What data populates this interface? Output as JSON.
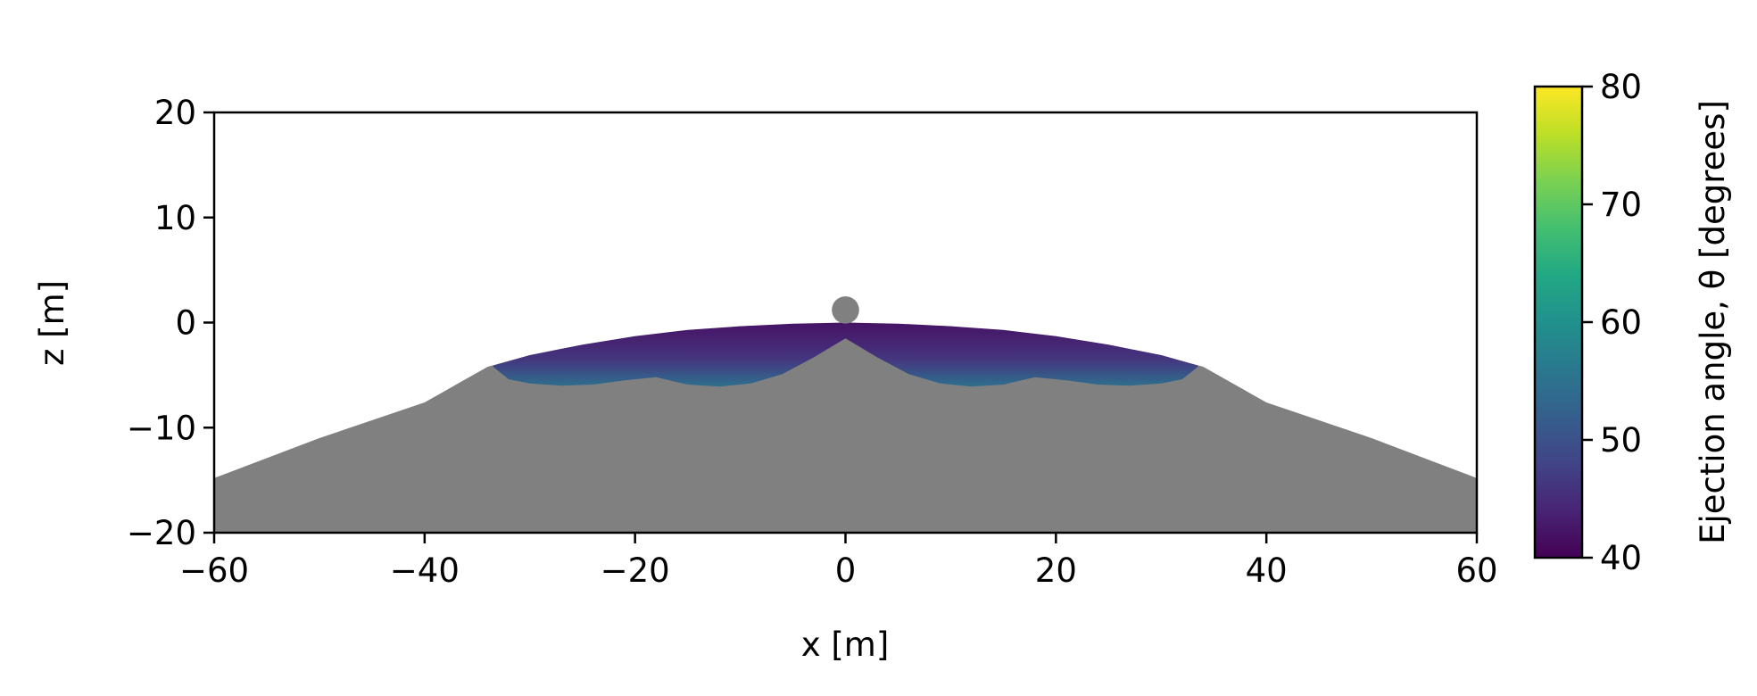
{
  "chart_data": {
    "type": "heatmap",
    "title": "",
    "xlabel": "x [m]",
    "ylabel": "z [m]",
    "xlim": [
      -60,
      60
    ],
    "ylim": [
      -20,
      20
    ],
    "x_ticks": [
      -60,
      -40,
      -20,
      0,
      20,
      40,
      60
    ],
    "y_ticks": [
      -20,
      -10,
      0,
      10,
      20
    ],
    "x_tick_labels": [
      "−60",
      "−40",
      "−20",
      "0",
      "20",
      "40",
      "60"
    ],
    "y_tick_labels": [
      "−20",
      "−10",
      "0",
      "10",
      "20"
    ],
    "grid": false,
    "surface": {
      "color": "#808080",
      "profile_x": [
        -60,
        -50,
        -40,
        -34,
        -30,
        -20,
        -10,
        0,
        10,
        20,
        30,
        34,
        40,
        50,
        60
      ],
      "profile_z": [
        -14.8,
        -11.0,
        -7.6,
        -4.2,
        -3.1,
        -1.3,
        -0.35,
        0,
        -0.35,
        -1.3,
        -3.1,
        -4.2,
        -7.6,
        -11.0,
        -14.8
      ]
    },
    "projectile": {
      "x": 0,
      "z": 1.2,
      "radius_m": 1.3,
      "color": "#808080"
    },
    "ejection_region": {
      "x_extent": [
        -33.5,
        33.5
      ],
      "upper_boundary_x": [
        0,
        5,
        10,
        15,
        20,
        25,
        30,
        33.5
      ],
      "upper_boundary_z": [
        0,
        -0.1,
        -0.35,
        -0.7,
        -1.3,
        -2.1,
        -3.1,
        -4.1
      ],
      "lower_boundary_x": [
        0,
        3,
        6,
        9,
        12,
        15,
        18,
        21,
        24,
        27,
        30,
        32,
        33.5
      ],
      "lower_boundary_z": [
        -1.5,
        -3.3,
        -4.9,
        -5.8,
        -6.1,
        -5.9,
        -5.2,
        -5.5,
        -5.9,
        -6.0,
        -5.8,
        -5.4,
        -4.2
      ],
      "angle_top_degrees": 42,
      "angle_bottom_degrees": 55
    },
    "colorbar": {
      "colormap": "viridis",
      "label": "Ejection angle, θ [degrees]",
      "range": [
        40,
        80
      ],
      "ticks": [
        40,
        50,
        60,
        70,
        80
      ],
      "tick_labels": [
        "40",
        "50",
        "60",
        "70",
        "80"
      ],
      "colors": [
        "#440154",
        "#482475",
        "#414487",
        "#355f8d",
        "#2a788e",
        "#21918c",
        "#22a884",
        "#44bf70",
        "#7ad151",
        "#bddf26",
        "#fde725"
      ]
    }
  }
}
